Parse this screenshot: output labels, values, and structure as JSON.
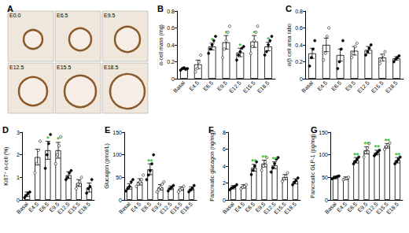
{
  "panel_a": {
    "panel": "A",
    "captions": [
      "E0.0",
      "E6.5",
      "E9.5",
      "E12.5",
      "E15.5",
      "E18.5"
    ]
  },
  "chart_data": [
    {
      "type": "bar",
      "panel": "B",
      "ylabel": "α-cell mass (mg)",
      "categories": [
        "Basal",
        "E4.5",
        "E6.5",
        "E9.5",
        "E12.5",
        "E15.5",
        "E18.5"
      ],
      "values": [
        0.12,
        0.17,
        0.38,
        0.43,
        0.31,
        0.44,
        0.38
      ],
      "errors": [
        0.01,
        0.05,
        0.04,
        0.08,
        0.05,
        0.07,
        0.05
      ],
      "points": [
        [
          0.1,
          0.12,
          0.13,
          0.11,
          0.12
        ],
        [
          0.08,
          0.12,
          0.2,
          0.28
        ],
        [
          0.3,
          0.35,
          0.4,
          0.45,
          0.5
        ],
        [
          0.25,
          0.35,
          0.45,
          0.55,
          0.62
        ],
        [
          0.22,
          0.28,
          0.32,
          0.36,
          0.38
        ],
        [
          0.3,
          0.38,
          0.45,
          0.55,
          0.62
        ],
        [
          0.28,
          0.32,
          0.4,
          0.45,
          0.5
        ]
      ],
      "annotations": {
        "color": "#33bb33",
        "labels": [
          null,
          null,
          "*",
          "*",
          "*",
          "*",
          "*"
        ]
      },
      "color": "#ffffff",
      "ylim": [
        0,
        0.8
      ],
      "yticks": [
        0,
        0.2,
        0.4,
        0.6,
        0.8
      ],
      "grid": false
    },
    {
      "type": "bar",
      "panel": "C",
      "ylabel": "α/β cell area ratio",
      "categories": [
        "Basal",
        "E4.5",
        "E6.5",
        "E9.5",
        "E12.5",
        "E15.5",
        "E18.5"
      ],
      "values": [
        0.3,
        0.4,
        0.28,
        0.33,
        0.34,
        0.25,
        0.24
      ],
      "errors": [
        0.06,
        0.08,
        0.07,
        0.05,
        0.04,
        0.04,
        0.02
      ],
      "points": [
        [
          0.15,
          0.25,
          0.35,
          0.45
        ],
        [
          0.22,
          0.3,
          0.5,
          0.6
        ],
        [
          0.12,
          0.2,
          0.35,
          0.45
        ],
        [
          0.25,
          0.3,
          0.38,
          0.42
        ],
        [
          0.28,
          0.32,
          0.36,
          0.4
        ],
        [
          0.18,
          0.22,
          0.28,
          0.32
        ],
        [
          0.2,
          0.23,
          0.25,
          0.27
        ]
      ],
      "annotations": {
        "color": "#33bb33",
        "labels": [
          null,
          null,
          null,
          null,
          null,
          null,
          null
        ]
      },
      "color": "#ffffff",
      "ylim": [
        0,
        0.8
      ],
      "yticks": [
        0,
        0.2,
        0.4,
        0.6,
        0.8
      ],
      "grid": false
    },
    {
      "type": "bar",
      "panel": "D",
      "ylabel": "Ki67⁺ α-cell (%)",
      "categories": [
        "Basal",
        "E4.5",
        "E6.5",
        "E9.5",
        "E12.5",
        "E15.5",
        "E18.5"
      ],
      "values": [
        0.25,
        1.9,
        2.2,
        2.2,
        1.1,
        0.75,
        0.55
      ],
      "errors": [
        0.1,
        0.35,
        0.4,
        0.35,
        0.15,
        0.15,
        0.2
      ],
      "points": [
        [
          0.1,
          0.2,
          0.3,
          0.35
        ],
        [
          1.2,
          1.6,
          2.2,
          2.6
        ],
        [
          1.4,
          2.0,
          2.5,
          2.9
        ],
        [
          1.6,
          2.0,
          2.4,
          2.8
        ],
        [
          0.9,
          1.0,
          1.2,
          1.3
        ],
        [
          0.5,
          0.7,
          0.8,
          1.0
        ],
        [
          0.3,
          0.5,
          0.6,
          0.9
        ]
      ],
      "annotations": {
        "color": "#33bb33",
        "labels": [
          null,
          null,
          "*",
          "*",
          null,
          null,
          null
        ]
      },
      "color": "#ffffff",
      "ylim": [
        0,
        3
      ],
      "yticks": [
        0,
        1,
        2,
        3
      ],
      "grid": false
    },
    {
      "type": "bar",
      "panel": "E",
      "ylabel": "Glucagon (pmol/L)",
      "categories": [
        "Basal",
        "E4.5",
        "E6.5",
        "E9.5",
        "E12.5",
        "E15.5",
        "E18.5"
      ],
      "values": [
        30,
        40,
        68,
        28,
        27,
        25,
        25
      ],
      "errors": [
        6,
        7,
        12,
        6,
        4,
        4,
        4
      ],
      "points": [
        [
          20,
          25,
          30,
          40,
          45
        ],
        [
          30,
          35,
          40,
          45,
          55
        ],
        [
          45,
          55,
          65,
          80,
          100
        ],
        [
          18,
          22,
          28,
          35,
          40
        ],
        [
          20,
          25,
          28,
          32
        ],
        [
          18,
          22,
          25,
          30
        ],
        [
          18,
          22,
          26,
          32
        ]
      ],
      "annotations": {
        "color": "#33bb33",
        "labels": [
          null,
          null,
          "**",
          null,
          null,
          null,
          null
        ]
      },
      "color": "#ffffff",
      "ylim": [
        0,
        150
      ],
      "yticks": [
        0,
        50,
        100,
        150
      ],
      "grid": false
    },
    {
      "type": "bar",
      "panel": "F",
      "ylabel": "Pancreatic glucagon (ng/mg)",
      "categories": [
        "Basal",
        "E4.5",
        "E6.5",
        "E9.5",
        "E12.5",
        "E15.5",
        "E18.5"
      ],
      "values": [
        1.5,
        1.6,
        3.8,
        4.3,
        4.1,
        2.7,
        2.2
      ],
      "errors": [
        0.2,
        0.2,
        0.4,
        0.4,
        0.4,
        0.3,
        0.3
      ],
      "points": [
        [
          1.2,
          1.4,
          1.5,
          1.6,
          1.8
        ],
        [
          1.3,
          1.5,
          1.6,
          1.8
        ],
        [
          3.0,
          3.5,
          4.0,
          4.5
        ],
        [
          3.5,
          4.0,
          4.5,
          5.0
        ],
        [
          3.3,
          3.8,
          4.3,
          4.8,
          5.0
        ],
        [
          2.2,
          2.5,
          2.8,
          3.2
        ],
        [
          1.8,
          2.1,
          2.3,
          2.6
        ]
      ],
      "annotations": {
        "color": "#33bb33",
        "labels": [
          null,
          null,
          "**",
          "**",
          "**",
          null,
          null
        ]
      },
      "color": "#ffffff",
      "ylim": [
        0,
        8
      ],
      "yticks": [
        0,
        2,
        4,
        6,
        8
      ],
      "grid": false
    },
    {
      "type": "bar",
      "panel": "G",
      "ylabel": "Pancreatic GLP-1 (pg/mg)",
      "categories": [
        "Basal",
        "E4.5",
        "E6.5",
        "E9.5",
        "E12.5",
        "E15.5",
        "E18.5"
      ],
      "values": [
        50,
        48,
        88,
        110,
        105,
        120,
        88
      ],
      "errors": [
        3,
        3,
        6,
        8,
        5,
        5,
        6
      ],
      "points": [
        [
          47,
          49,
          50,
          52,
          53
        ],
        [
          45,
          47,
          48,
          50
        ],
        [
          80,
          85,
          90,
          95
        ],
        [
          95,
          105,
          115,
          125
        ],
        [
          98,
          102,
          106,
          110
        ],
        [
          112,
          118,
          122,
          126
        ],
        [
          80,
          85,
          90,
          95
        ]
      ],
      "annotations": {
        "color": "#33bb33",
        "labels": [
          null,
          null,
          "**",
          "**",
          "**",
          "**",
          "**"
        ]
      },
      "color": "#ffffff",
      "ylim": [
        0,
        150
      ],
      "yticks": [
        0,
        50,
        100,
        150
      ],
      "grid": false
    }
  ]
}
